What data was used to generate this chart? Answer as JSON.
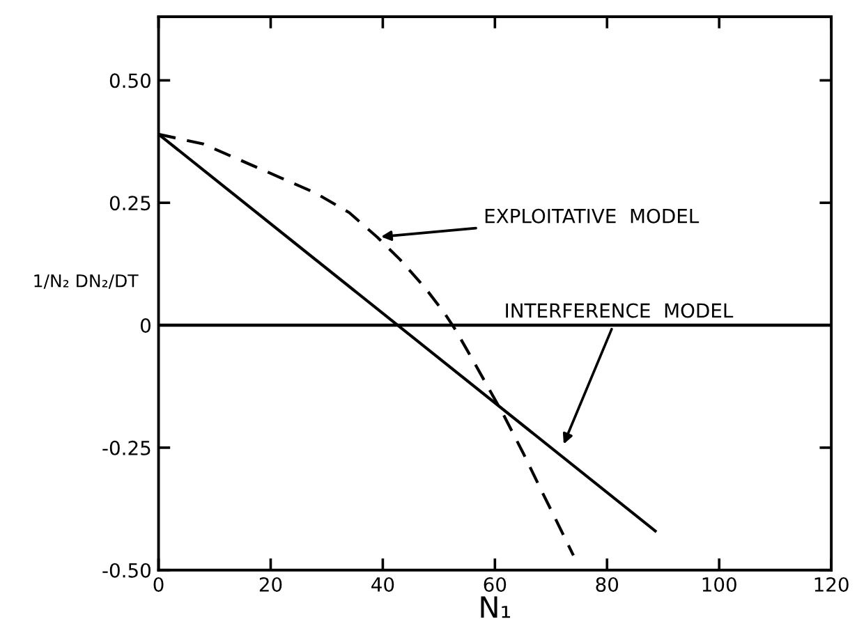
{
  "chart_data": {
    "type": "line",
    "xlabel": "N₁",
    "ylabel": "1/N₂ DN₂/DT",
    "xlim": [
      0,
      120
    ],
    "xticks": [
      0,
      20,
      40,
      60,
      80,
      100,
      120
    ],
    "ylim": [
      -0.5,
      0.63
    ],
    "yticks": [
      {
        "value": -0.5,
        "label": "-0.50"
      },
      {
        "value": -0.25,
        "label": "-0.25"
      },
      0,
      {
        "value": 0.25,
        "label": "0.25"
      },
      {
        "value": 0.5,
        "label": "0.50"
      }
    ],
    "grid": false,
    "legend": false,
    "marker": "none",
    "ref_lines": [
      {
        "axis": "y",
        "value": 0,
        "color": "#000000",
        "line_style": "solid"
      }
    ],
    "series": [
      {
        "color": "#000000",
        "line_style": "solid",
        "x": [
          0,
          88.6
        ],
        "values": [
          0.39,
          -0.42
        ]
      },
      {
        "color": "#000000",
        "line_style": "dashed",
        "x": [
          0,
          8,
          16,
          22,
          28,
          34,
          39,
          43,
          47.5,
          51,
          53,
          56,
          61.4,
          65,
          68.4,
          71,
          74
        ],
        "values": [
          0.39,
          0.37,
          0.33,
          0.3,
          0.27,
          0.23,
          0.18,
          0.135,
          0.077,
          0.025,
          -0.01,
          -0.07,
          -0.18,
          -0.26,
          -0.34,
          -0.4,
          -0.47
        ]
      }
    ],
    "annotations": [
      {
        "text": "EXPLOITATIVE  MODEL",
        "x": 39,
        "y": 0.18
      },
      {
        "text": "INTERFERENCE  MODEL",
        "x": 72,
        "y": -0.25
      }
    ]
  }
}
